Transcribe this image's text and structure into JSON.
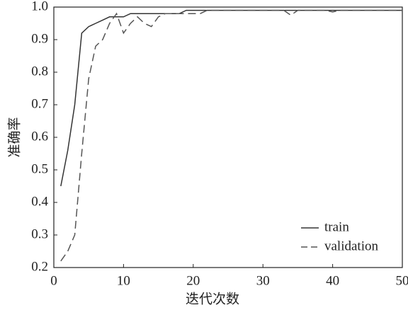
{
  "chart_data": {
    "type": "line",
    "x_label": "迭代次数",
    "y_label": "准确率",
    "x": [
      1,
      2,
      3,
      4,
      5,
      6,
      7,
      8,
      9,
      10,
      11,
      12,
      13,
      14,
      15,
      16,
      17,
      18,
      19,
      20,
      21,
      22,
      23,
      24,
      25,
      26,
      27,
      28,
      29,
      30,
      31,
      32,
      33,
      34,
      35,
      36,
      37,
      38,
      39,
      40,
      41,
      42,
      43,
      44,
      45,
      46,
      47,
      48,
      49,
      50
    ],
    "series": [
      {
        "name": "train",
        "color": "#333333",
        "dash": false,
        "values": [
          0.45,
          0.56,
          0.7,
          0.92,
          0.94,
          0.95,
          0.96,
          0.97,
          0.97,
          0.97,
          0.98,
          0.98,
          0.98,
          0.98,
          0.98,
          0.98,
          0.98,
          0.98,
          0.99,
          0.99,
          0.99,
          0.99,
          0.99,
          0.99,
          0.99,
          0.99,
          0.99,
          0.99,
          0.99,
          0.99,
          0.99,
          0.99,
          0.99,
          0.99,
          0.99,
          0.99,
          0.99,
          0.99,
          0.99,
          0.99,
          0.99,
          0.99,
          0.99,
          0.99,
          0.99,
          0.99,
          0.99,
          0.99,
          0.99,
          0.99
        ]
      },
      {
        "name": "validation",
        "color": "#555555",
        "dash": true,
        "values": [
          0.22,
          0.25,
          0.3,
          0.55,
          0.78,
          0.88,
          0.9,
          0.95,
          0.98,
          0.92,
          0.95,
          0.97,
          0.95,
          0.94,
          0.97,
          0.98,
          0.98,
          0.98,
          0.98,
          0.98,
          0.98,
          0.99,
          0.99,
          0.99,
          0.99,
          0.99,
          0.99,
          0.99,
          0.99,
          0.99,
          0.99,
          0.99,
          0.99,
          0.975,
          0.99,
          0.99,
          0.99,
          0.99,
          0.99,
          0.985,
          0.99,
          0.99,
          0.99,
          0.99,
          0.99,
          0.99,
          0.99,
          0.99,
          0.99,
          0.99
        ]
      }
    ],
    "xlim": [
      0,
      50
    ],
    "xticks": [
      0,
      10,
      20,
      30,
      40,
      50
    ],
    "ylim": [
      0.2,
      1
    ],
    "yticks": [
      0.2,
      0.3,
      0.4,
      0.5,
      0.6,
      0.7,
      0.8,
      0.9,
      {
        "value": 1,
        "label": "1.0"
      }
    ],
    "legend": "lower right",
    "grid": false
  }
}
